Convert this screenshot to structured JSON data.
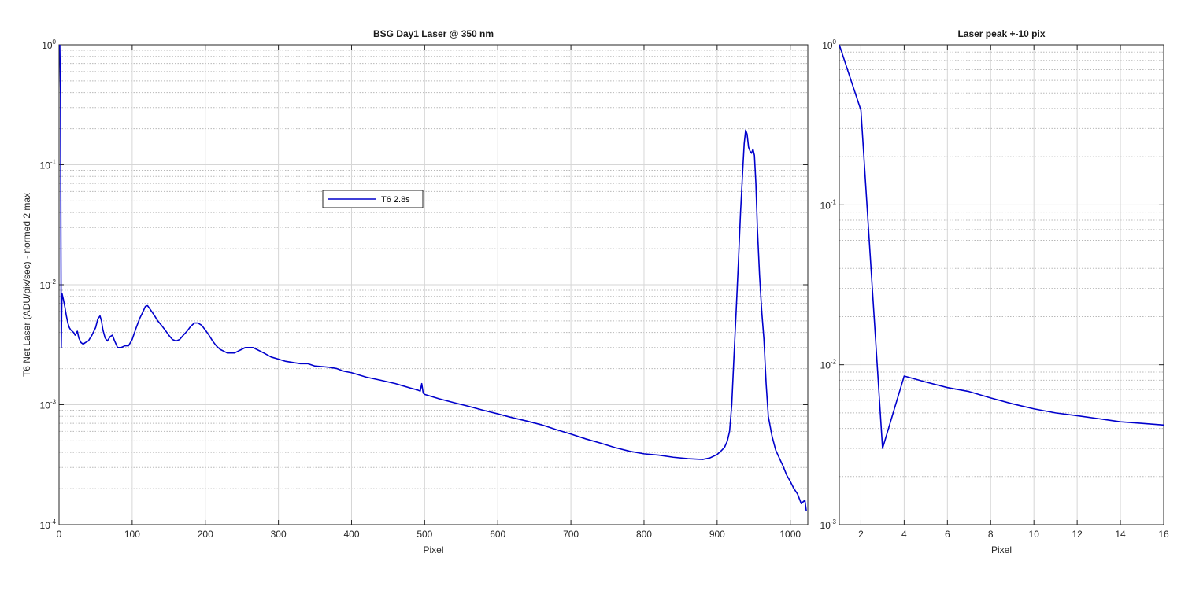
{
  "chart_data": [
    {
      "type": "line",
      "title": "BSG  Day1 Laser @ 350 nm",
      "xlabel": "Pixel",
      "ylabel": "T6 Net Laser (ADU/pix/sec) - normed 2 max",
      "xlim": [
        0,
        1024
      ],
      "ylim": [
        0.0001,
        1
      ],
      "yscale": "log",
      "grid": true,
      "minor_grid": true,
      "xticks": [
        0,
        100,
        200,
        300,
        400,
        500,
        600,
        700,
        800,
        900,
        1000
      ],
      "xtick_labels": [
        "0",
        "100",
        "200",
        "300",
        "400",
        "500",
        "600",
        "700",
        "800",
        "900",
        "1000"
      ],
      "yticks": [
        {
          "mant": "10",
          "exp": "-4"
        },
        {
          "mant": "10",
          "exp": "-3"
        },
        {
          "mant": "10",
          "exp": "-2"
        },
        {
          "mant": "10",
          "exp": "-1"
        },
        {
          "mant": "10",
          "exp": "0"
        }
      ],
      "legend": {
        "entries": [
          "T6 2.8s"
        ],
        "placement": "upper-left-center"
      },
      "series": [
        {
          "name": "T6 2.8s",
          "color": "#0000cc",
          "x": [
            1,
            2,
            3,
            4,
            6,
            8,
            10,
            12,
            14,
            16,
            18,
            20,
            22,
            25,
            27,
            30,
            33,
            36,
            40,
            45,
            50,
            53,
            56,
            58,
            60,
            63,
            66,
            70,
            73,
            76,
            80,
            85,
            90,
            95,
            100,
            105,
            110,
            115,
            118,
            121,
            125,
            130,
            135,
            140,
            145,
            150,
            155,
            160,
            165,
            170,
            175,
            180,
            185,
            190,
            195,
            200,
            205,
            210,
            215,
            220,
            225,
            230,
            235,
            240,
            245,
            250,
            255,
            260,
            265,
            270,
            275,
            280,
            290,
            300,
            310,
            320,
            330,
            340,
            350,
            360,
            370,
            380,
            390,
            400,
            420,
            440,
            460,
            480,
            490,
            494,
            496,
            498,
            500,
            520,
            540,
            560,
            580,
            600,
            620,
            640,
            660,
            680,
            700,
            720,
            740,
            760,
            780,
            800,
            820,
            840,
            860,
            880,
            890,
            900,
            905,
            910,
            914,
            917,
            920,
            923,
            926,
            929,
            932,
            935,
            937,
            939,
            941,
            943,
            945,
            947,
            949,
            951,
            953,
            955,
            958,
            961,
            964,
            967,
            970,
            975,
            980,
            985,
            990,
            995,
            1000,
            1005,
            1010,
            1015,
            1020,
            1022
          ],
          "y": [
            1.0,
            0.39,
            0.003,
            0.0085,
            0.0075,
            0.0065,
            0.0055,
            0.0048,
            0.0044,
            0.0042,
            0.0041,
            0.004,
            0.0038,
            0.0041,
            0.0036,
            0.0033,
            0.0032,
            0.0033,
            0.0034,
            0.0038,
            0.0044,
            0.0052,
            0.0055,
            0.005,
            0.0042,
            0.0036,
            0.0034,
            0.0037,
            0.0038,
            0.0034,
            0.003,
            0.003,
            0.0031,
            0.0031,
            0.0035,
            0.0043,
            0.0052,
            0.006,
            0.0066,
            0.0067,
            0.0062,
            0.0056,
            0.005,
            0.0046,
            0.0042,
            0.0038,
            0.0035,
            0.0034,
            0.0035,
            0.0038,
            0.0041,
            0.0045,
            0.0048,
            0.0048,
            0.0046,
            0.0042,
            0.0038,
            0.0034,
            0.0031,
            0.0029,
            0.0028,
            0.0027,
            0.0027,
            0.0027,
            0.0028,
            0.0029,
            0.003,
            0.003,
            0.003,
            0.0029,
            0.0028,
            0.0027,
            0.0025,
            0.0024,
            0.0023,
            0.00225,
            0.0022,
            0.0022,
            0.0021,
            0.00208,
            0.00205,
            0.002,
            0.0019,
            0.00185,
            0.0017,
            0.0016,
            0.0015,
            0.00138,
            0.00133,
            0.0013,
            0.0015,
            0.00125,
            0.00122,
            0.00112,
            0.00104,
            0.00097,
            0.0009,
            0.00084,
            0.00078,
            0.00073,
            0.00068,
            0.00062,
            0.00057,
            0.00052,
            0.00048,
            0.00044,
            0.00041,
            0.00039,
            0.00038,
            0.000365,
            0.000355,
            0.00035,
            0.00036,
            0.000385,
            0.00041,
            0.00044,
            0.0005,
            0.0006,
            0.001,
            0.0025,
            0.006,
            0.015,
            0.04,
            0.09,
            0.15,
            0.195,
            0.18,
            0.14,
            0.13,
            0.125,
            0.135,
            0.12,
            0.07,
            0.03,
            0.012,
            0.006,
            0.0035,
            0.0015,
            0.0008,
            0.00055,
            0.00042,
            0.00036,
            0.00031,
            0.00026,
            0.00023,
            0.0002,
            0.00018,
            0.00015,
            0.00016,
            0.00013
          ]
        }
      ]
    },
    {
      "type": "line",
      "title": "Laser peak +-10 pix",
      "xlabel": "Pixel",
      "ylabel": "",
      "xlim": [
        1,
        16
      ],
      "ylim": [
        0.001,
        1
      ],
      "yscale": "log",
      "grid": true,
      "minor_grid": true,
      "xticks": [
        2,
        4,
        6,
        8,
        10,
        12,
        14,
        16
      ],
      "xtick_labels": [
        "2",
        "4",
        "6",
        "8",
        "10",
        "12",
        "14",
        "16"
      ],
      "yticks": [
        {
          "mant": "10",
          "exp": "-3"
        },
        {
          "mant": "10",
          "exp": "-2"
        },
        {
          "mant": "10",
          "exp": "-1"
        },
        {
          "mant": "10",
          "exp": "0"
        }
      ],
      "series": [
        {
          "name": "",
          "color": "#0000cc",
          "x": [
            1,
            2,
            3,
            4,
            5,
            6,
            7,
            8,
            9,
            10,
            11,
            12,
            13,
            14,
            15,
            16
          ],
          "y": [
            1.0,
            0.39,
            0.003,
            0.0085,
            0.0078,
            0.0072,
            0.0068,
            0.0062,
            0.0057,
            0.0053,
            0.005,
            0.0048,
            0.0046,
            0.0044,
            0.0043,
            0.0042
          ]
        }
      ]
    }
  ]
}
